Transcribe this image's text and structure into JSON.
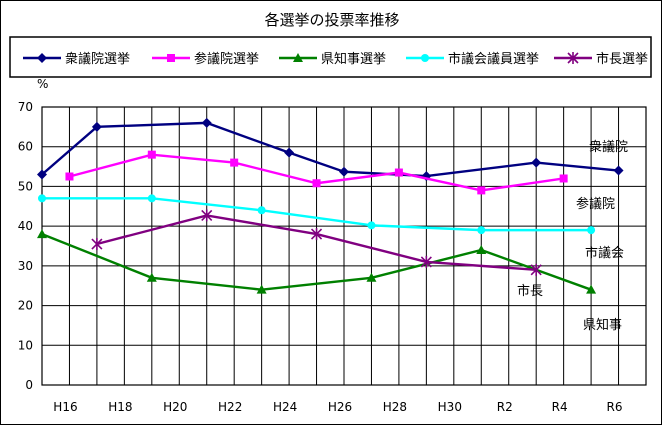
{
  "chart_data": {
    "type": "line",
    "title": "各選挙の投票率推移",
    "ylabel": "%",
    "ylim": [
      0,
      70
    ],
    "yticks": [
      0,
      10,
      20,
      30,
      40,
      50,
      60,
      70
    ],
    "xticks": [
      "H16",
      "H18",
      "H20",
      "H22",
      "H24",
      "H26",
      "H28",
      "H30",
      "R2",
      "R4",
      "R6"
    ],
    "grid": true,
    "legend_position": "top",
    "series": [
      {
        "name": "衆議院選挙",
        "label": "衆議院",
        "color": "#000080",
        "marker": "diamond",
        "points": [
          [
            "H15",
            53
          ],
          [
            "H17",
            65
          ],
          [
            "H21",
            66
          ],
          [
            "H24",
            58.5
          ],
          [
            "H26",
            53.7
          ],
          [
            "H29",
            52.6
          ],
          [
            "R3",
            56
          ],
          [
            "R6",
            54
          ]
        ]
      },
      {
        "name": "参議院選挙",
        "label": "参議院",
        "color": "#FF00FF",
        "marker": "square",
        "points": [
          [
            "H16",
            52.5
          ],
          [
            "H19",
            58
          ],
          [
            "H22",
            56
          ],
          [
            "H25",
            50.8
          ],
          [
            "H28",
            53.5
          ],
          [
            "R1",
            49
          ],
          [
            "R4",
            52
          ]
        ]
      },
      {
        "name": "県知事選挙",
        "label": "県知事",
        "color": "#008000",
        "marker": "triangle",
        "points": [
          [
            "H15",
            38
          ],
          [
            "H19",
            27
          ],
          [
            "H23",
            24
          ],
          [
            "H27",
            27
          ],
          [
            "R1",
            34
          ],
          [
            "R5",
            24
          ]
        ]
      },
      {
        "name": "市議会議員選挙",
        "label": "市議会",
        "color": "#00FFFF",
        "marker": "circle",
        "points": [
          [
            "H15",
            47
          ],
          [
            "H19",
            47
          ],
          [
            "H23",
            44
          ],
          [
            "H27",
            40.2
          ],
          [
            "R1",
            39
          ],
          [
            "R5",
            39
          ]
        ]
      },
      {
        "name": "市長選挙",
        "label": "市長",
        "color": "#800080",
        "marker": "star",
        "points": [
          [
            "H17",
            35.5
          ],
          [
            "H21",
            42.7
          ],
          [
            "H25",
            38
          ],
          [
            "H29",
            31
          ],
          [
            "R3",
            29
          ]
        ]
      }
    ]
  }
}
